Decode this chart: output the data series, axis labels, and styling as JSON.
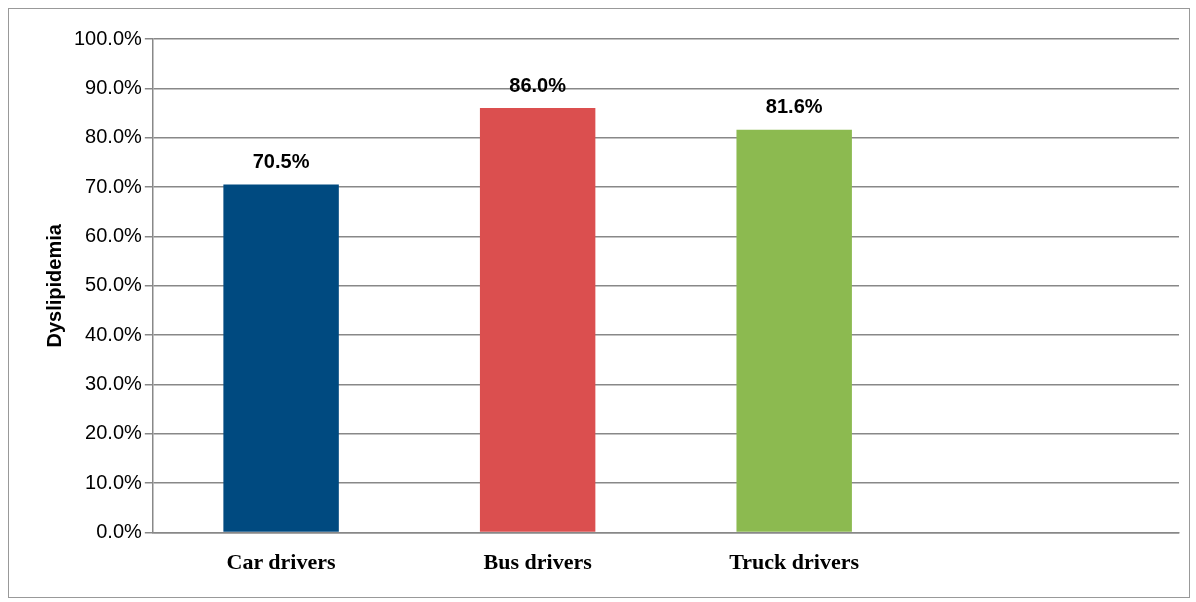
{
  "chart_data": {
    "type": "bar",
    "ylabel": "Dyslipidemia",
    "categories": [
      "Car drivers",
      "Bus drivers",
      "Truck drivers",
      null
    ],
    "values": [
      70.5,
      86.0,
      81.6,
      null
    ],
    "colors": [
      "#004a80",
      "#db4f4f",
      "#8cba50",
      null
    ],
    "value_labels": [
      "70.5%",
      "86.0%",
      "81.6%",
      null
    ],
    "ylim": [
      0,
      100
    ],
    "yticks": [
      {
        "value": 0,
        "label": "0.0%"
      },
      {
        "value": 10,
        "label": "10.0%"
      },
      {
        "value": 20,
        "label": "20.0%"
      },
      {
        "value": 30,
        "label": "30.0%"
      },
      {
        "value": 40,
        "label": "40.0%"
      },
      {
        "value": 50,
        "label": "50.0%"
      },
      {
        "value": 60,
        "label": "60.0%"
      },
      {
        "value": 70,
        "label": "70.0%"
      },
      {
        "value": 80,
        "label": "80.0%"
      },
      {
        "value": 90,
        "label": "90.0%"
      },
      {
        "value": 100,
        "label": "100.0%"
      }
    ],
    "grid": "y",
    "legend": false
  }
}
